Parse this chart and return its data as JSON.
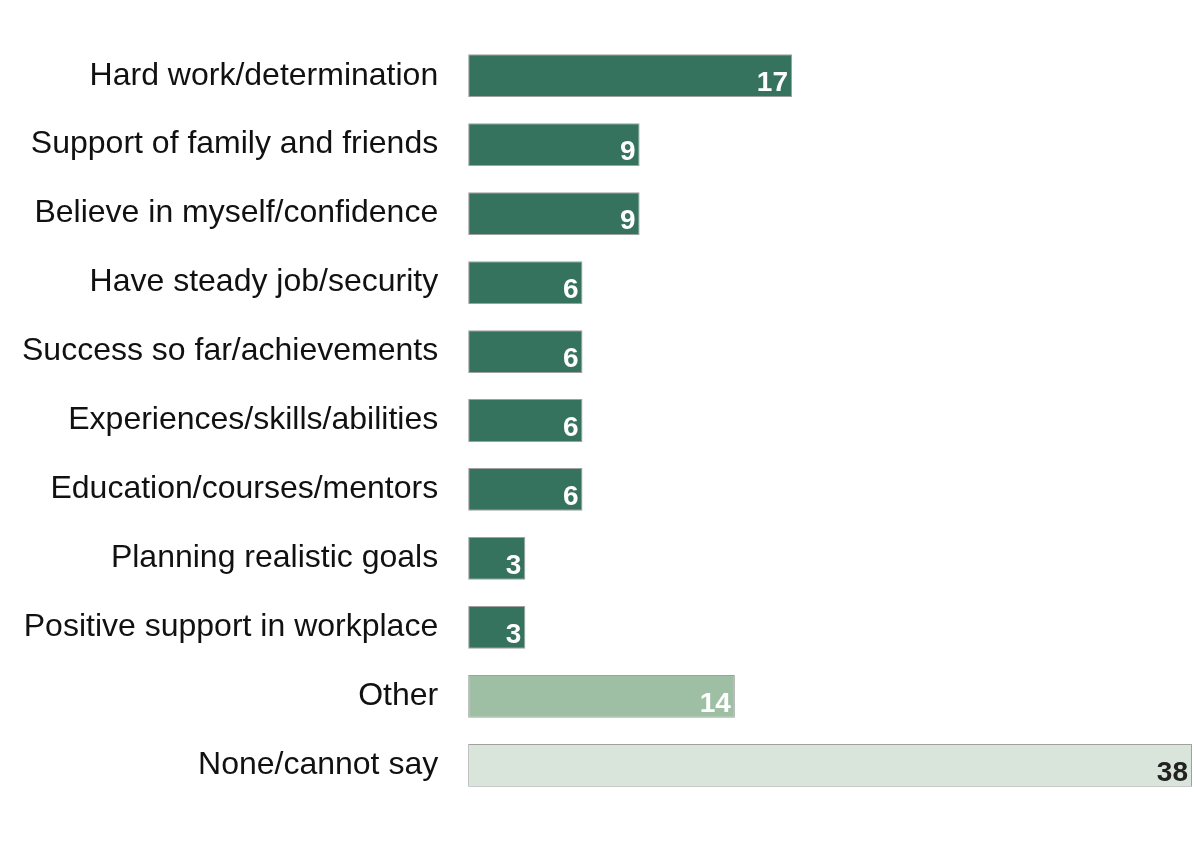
{
  "chart_data": {
    "type": "bar",
    "orientation": "horizontal",
    "categories": [
      "Hard work/determination",
      "Support of family and friends",
      "Believe in myself/confidence",
      "Have steady job/security",
      "Success so far/achievements",
      "Experiences/skills/abilities",
      "Education/courses/mentors",
      "Planning realistic goals",
      "Positive support in workplace",
      "Other",
      "None/cannot say"
    ],
    "values": [
      17,
      9,
      9,
      6,
      6,
      6,
      6,
      3,
      3,
      14,
      38
    ],
    "colors": [
      "#35735f",
      "#35735f",
      "#35735f",
      "#35735f",
      "#35735f",
      "#35735f",
      "#35735f",
      "#35735f",
      "#35735f",
      "#9ebfa3",
      "#d9e5da"
    ],
    "data_labels": true,
    "legend": false
  }
}
